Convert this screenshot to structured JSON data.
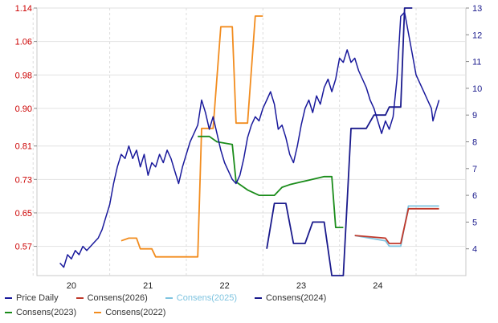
{
  "chart_data": {
    "type": "line",
    "title": "",
    "xlabel": "",
    "ylabel": "",
    "x_ticks": [
      "20",
      "21",
      "22",
      "23",
      "24"
    ],
    "y_left": {
      "ticks": [
        "1.14",
        "1.06",
        "0.98",
        "0.90",
        "0.81",
        "0.73",
        "0.65",
        "0.57"
      ],
      "ylim": [
        0.5,
        1.14
      ],
      "color": "#cc0000"
    },
    "y_right": {
      "ticks": [
        "13",
        "12",
        "11",
        "10",
        "9",
        "8",
        "7",
        "6",
        "5",
        "4"
      ],
      "ylim": [
        3.0,
        13.0
      ],
      "color": "#1a1a8c"
    },
    "grid": true,
    "legend_position": "bottom",
    "series": [
      {
        "name": "Price Daily",
        "axis": "left",
        "color": "#1a1a9c",
        "points": [
          [
            19.85,
            0.53
          ],
          [
            19.9,
            0.52
          ],
          [
            19.95,
            0.55
          ],
          [
            20.0,
            0.54
          ],
          [
            20.05,
            0.56
          ],
          [
            20.1,
            0.55
          ],
          [
            20.15,
            0.57
          ],
          [
            20.2,
            0.56
          ],
          [
            20.25,
            0.57
          ],
          [
            20.3,
            0.58
          ],
          [
            20.35,
            0.59
          ],
          [
            20.4,
            0.61
          ],
          [
            20.45,
            0.64
          ],
          [
            20.5,
            0.67
          ],
          [
            20.55,
            0.72
          ],
          [
            20.6,
            0.76
          ],
          [
            20.65,
            0.79
          ],
          [
            20.7,
            0.78
          ],
          [
            20.75,
            0.81
          ],
          [
            20.8,
            0.78
          ],
          [
            20.85,
            0.8
          ],
          [
            20.9,
            0.76
          ],
          [
            20.95,
            0.79
          ],
          [
            21.0,
            0.74
          ],
          [
            21.05,
            0.77
          ],
          [
            21.1,
            0.76
          ],
          [
            21.15,
            0.79
          ],
          [
            21.2,
            0.77
          ],
          [
            21.25,
            0.8
          ],
          [
            21.3,
            0.78
          ],
          [
            21.35,
            0.75
          ],
          [
            21.4,
            0.72
          ],
          [
            21.45,
            0.76
          ],
          [
            21.5,
            0.79
          ],
          [
            21.55,
            0.82
          ],
          [
            21.6,
            0.84
          ],
          [
            21.65,
            0.86
          ],
          [
            21.7,
            0.92
          ],
          [
            21.75,
            0.89
          ],
          [
            21.8,
            0.85
          ],
          [
            21.85,
            0.88
          ],
          [
            21.9,
            0.84
          ],
          [
            21.95,
            0.8
          ],
          [
            22.0,
            0.77
          ],
          [
            22.05,
            0.75
          ],
          [
            22.1,
            0.73
          ],
          [
            22.15,
            0.72
          ],
          [
            22.2,
            0.74
          ],
          [
            22.25,
            0.78
          ],
          [
            22.3,
            0.83
          ],
          [
            22.35,
            0.86
          ],
          [
            22.4,
            0.88
          ],
          [
            22.45,
            0.87
          ],
          [
            22.5,
            0.9
          ],
          [
            22.55,
            0.92
          ],
          [
            22.6,
            0.94
          ],
          [
            22.65,
            0.91
          ],
          [
            22.7,
            0.85
          ],
          [
            22.75,
            0.86
          ],
          [
            22.8,
            0.83
          ],
          [
            22.85,
            0.79
          ],
          [
            22.9,
            0.77
          ],
          [
            22.95,
            0.81
          ],
          [
            23.0,
            0.86
          ],
          [
            23.05,
            0.9
          ],
          [
            23.1,
            0.92
          ],
          [
            23.15,
            0.89
          ],
          [
            23.2,
            0.93
          ],
          [
            23.25,
            0.91
          ],
          [
            23.3,
            0.95
          ],
          [
            23.35,
            0.97
          ],
          [
            23.4,
            0.94
          ],
          [
            23.45,
            0.97
          ],
          [
            23.5,
            1.02
          ],
          [
            23.55,
            1.01
          ],
          [
            23.6,
            1.04
          ],
          [
            23.65,
            1.01
          ],
          [
            23.7,
            1.02
          ],
          [
            23.75,
            0.99
          ],
          [
            23.8,
            0.97
          ],
          [
            23.85,
            0.95
          ],
          [
            23.9,
            0.92
          ],
          [
            23.95,
            0.9
          ],
          [
            24.0,
            0.87
          ],
          [
            24.05,
            0.84
          ],
          [
            24.1,
            0.87
          ],
          [
            24.15,
            0.85
          ],
          [
            24.2,
            0.88
          ],
          [
            24.25,
            0.97
          ],
          [
            24.3,
            1.12
          ],
          [
            24.35,
            1.13
          ],
          [
            24.4,
            1.08
          ],
          [
            24.45,
            1.03
          ],
          [
            24.5,
            0.98
          ],
          [
            24.55,
            0.96
          ],
          [
            24.6,
            0.94
          ],
          [
            24.65,
            0.92
          ],
          [
            24.7,
            0.9
          ],
          [
            24.72,
            0.87
          ],
          [
            24.75,
            0.89
          ],
          [
            24.8,
            0.92
          ]
        ]
      },
      {
        "name": "Consens(2026)",
        "axis": "right",
        "color": "#c0392b",
        "points": [
          [
            23.7,
            4.5
          ],
          [
            24.1,
            4.4
          ],
          [
            24.15,
            4.2
          ],
          [
            24.3,
            4.2
          ],
          [
            24.4,
            5.5
          ],
          [
            24.8,
            5.5
          ]
        ]
      },
      {
        "name": "Consens(2025)",
        "axis": "right",
        "color": "#7fc4e0",
        "points": [
          [
            23.7,
            4.5
          ],
          [
            24.1,
            4.3
          ],
          [
            24.15,
            4.1
          ],
          [
            24.3,
            4.1
          ],
          [
            24.4,
            5.6
          ],
          [
            24.8,
            5.6
          ]
        ]
      },
      {
        "name": "Consens(2024)",
        "axis": "right",
        "color": "#1a1a8c",
        "points": [
          [
            22.55,
            4.0
          ],
          [
            22.65,
            5.7
          ],
          [
            22.8,
            5.7
          ],
          [
            22.9,
            4.2
          ],
          [
            23.05,
            4.2
          ],
          [
            23.15,
            5.0
          ],
          [
            23.3,
            5.0
          ],
          [
            23.4,
            3.0
          ],
          [
            23.55,
            3.0
          ],
          [
            23.65,
            8.5
          ],
          [
            23.85,
            8.5
          ],
          [
            23.95,
            9.0
          ],
          [
            24.1,
            9.0
          ],
          [
            24.15,
            9.3
          ],
          [
            24.3,
            9.3
          ],
          [
            24.35,
            13.0
          ],
          [
            24.45,
            13.0
          ]
        ]
      },
      {
        "name": "Consens(2023)",
        "axis": "right",
        "color": "#1a8c1a",
        "points": [
          [
            21.65,
            8.2
          ],
          [
            21.8,
            8.2
          ],
          [
            21.9,
            8.0
          ],
          [
            22.1,
            7.9
          ],
          [
            22.15,
            6.5
          ],
          [
            22.3,
            6.2
          ],
          [
            22.45,
            6.0
          ],
          [
            22.65,
            6.0
          ],
          [
            22.75,
            6.3
          ],
          [
            22.85,
            6.4
          ],
          [
            23.0,
            6.5
          ],
          [
            23.15,
            6.6
          ],
          [
            23.3,
            6.7
          ],
          [
            23.4,
            6.7
          ],
          [
            23.45,
            4.8
          ],
          [
            23.55,
            4.8
          ]
        ]
      },
      {
        "name": "Consens(2022)",
        "axis": "right",
        "color": "#f28c1e",
        "points": [
          [
            20.65,
            4.3
          ],
          [
            20.75,
            4.4
          ],
          [
            20.85,
            4.4
          ],
          [
            20.9,
            4.0
          ],
          [
            21.05,
            4.0
          ],
          [
            21.1,
            3.7
          ],
          [
            21.65,
            3.7
          ],
          [
            21.7,
            8.5
          ],
          [
            21.85,
            8.5
          ],
          [
            21.95,
            12.3
          ],
          [
            22.1,
            12.3
          ],
          [
            22.15,
            8.7
          ],
          [
            22.3,
            8.7
          ],
          [
            22.4,
            12.7
          ],
          [
            22.5,
            12.7
          ]
        ]
      }
    ]
  }
}
